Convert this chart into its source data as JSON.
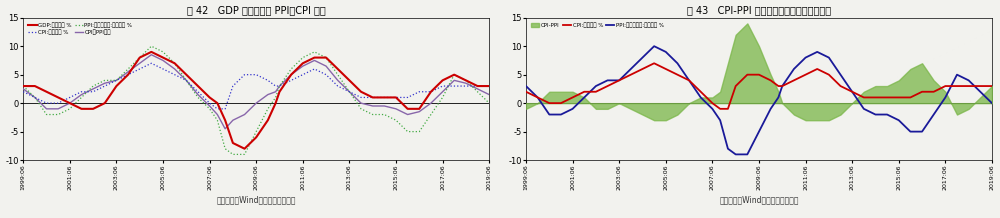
{
  "title1": "图 42   GDP 平减指数与 PPI、CPI 关系",
  "title2": "图 43   CPI-PPI 或继续上升，但逆锯面临变动",
  "source1": "数据来源：Wind、方正中期研究院",
  "source2": "数据来源：Wind、方正中期研究院",
  "ylim": [
    -10,
    15
  ],
  "yticks": [
    -10,
    -5,
    0,
    5,
    10,
    15
  ],
  "yticklabels": [
    "-10",
    "-5",
    "0",
    "5",
    "10",
    "15"
  ],
  "x_tick_step": 24,
  "x_labels": [
    "1999:06",
    "2001:06",
    "2003:06",
    "2005:06",
    "2007:06",
    "2009:06",
    "2011:06",
    "2013:06",
    "2015:06",
    "2017:06",
    "2019:06"
  ],
  "colors": {
    "gdp": "#cc0000",
    "ppi_chart1": "#44aa44",
    "cpi_chart1": "#3333cc",
    "avg_chart1": "#8866aa",
    "cpi_chart2": "#cc0000",
    "ppi_chart2": "#1a1a99",
    "fill": "#7ab648",
    "bg": "#f2f2ee",
    "zero_line": "#000000"
  }
}
